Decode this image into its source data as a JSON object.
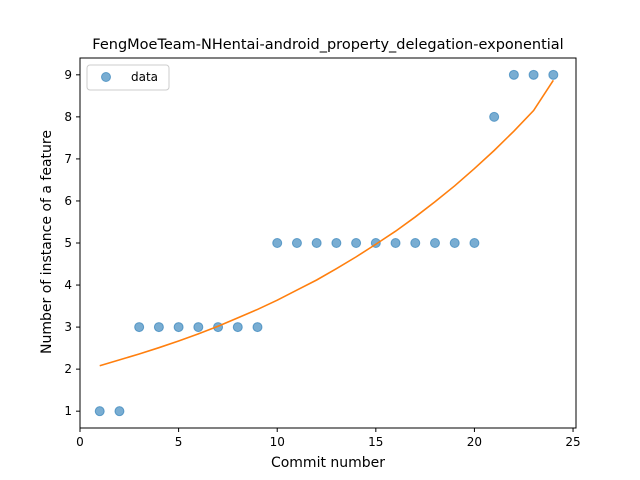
{
  "chart_data": {
    "type": "scatter",
    "title": "FengMoeTeam-NHentai-android_property_delegation-exponential",
    "xlabel": "Commit number",
    "ylabel": "Number of instance of a feature",
    "xlim": [
      0.0,
      25.15
    ],
    "ylim": [
      0.6,
      9.4
    ],
    "xticks": [
      0,
      5,
      10,
      15,
      20,
      25
    ],
    "yticks": [
      1,
      2,
      3,
      4,
      5,
      6,
      7,
      8,
      9
    ],
    "legend": {
      "placement": "top-left"
    },
    "series": [
      {
        "name": "data",
        "kind": "scatter",
        "color": "#1f77b4",
        "x": [
          1,
          2,
          3,
          4,
          5,
          6,
          7,
          8,
          9,
          10,
          11,
          12,
          13,
          14,
          15,
          16,
          17,
          18,
          19,
          20,
          21,
          22,
          23,
          24
        ],
        "y": [
          1,
          1,
          3,
          3,
          3,
          3,
          3,
          3,
          3,
          5,
          5,
          5,
          5,
          5,
          5,
          5,
          5,
          5,
          5,
          5,
          8,
          9,
          9,
          9
        ]
      },
      {
        "kind": "line",
        "color": "#ff7f0e",
        "x": [
          1,
          2,
          3,
          4,
          5,
          6,
          7,
          8,
          9,
          10,
          11,
          12,
          13,
          14,
          15,
          16,
          17,
          18,
          19,
          20,
          21,
          22,
          23,
          24
        ],
        "y": [
          2.08,
          2.22,
          2.36,
          2.51,
          2.67,
          2.84,
          3.02,
          3.22,
          3.42,
          3.64,
          3.88,
          4.12,
          4.39,
          4.67,
          4.97,
          5.28,
          5.62,
          5.98,
          6.36,
          6.77,
          7.2,
          7.66,
          8.15,
          8.87
        ]
      }
    ]
  }
}
